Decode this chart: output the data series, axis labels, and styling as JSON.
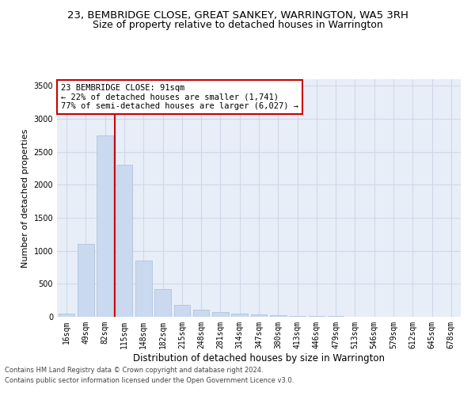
{
  "title": "23, BEMBRIDGE CLOSE, GREAT SANKEY, WARRINGTON, WA5 3RH",
  "subtitle": "Size of property relative to detached houses in Warrington",
  "xlabel": "Distribution of detached houses by size in Warrington",
  "ylabel": "Number of detached properties",
  "categories": [
    "16sqm",
    "49sqm",
    "82sqm",
    "115sqm",
    "148sqm",
    "182sqm",
    "215sqm",
    "248sqm",
    "281sqm",
    "314sqm",
    "347sqm",
    "380sqm",
    "413sqm",
    "446sqm",
    "479sqm",
    "513sqm",
    "546sqm",
    "579sqm",
    "612sqm",
    "645sqm",
    "678sqm"
  ],
  "values": [
    50,
    1100,
    2750,
    2300,
    850,
    420,
    180,
    110,
    75,
    50,
    35,
    20,
    15,
    10,
    7,
    5,
    4,
    3,
    2,
    2,
    1
  ],
  "bar_color": "#c9d9f0",
  "bar_edge_color": "#a8bdd8",
  "vline_x": 2.5,
  "vline_color": "#cc0000",
  "annotation_title": "23 BEMBRIDGE CLOSE: 91sqm",
  "annotation_line1": "← 22% of detached houses are smaller (1,741)",
  "annotation_line2": "77% of semi-detached houses are larger (6,027) →",
  "annotation_box_color": "#ffffff",
  "annotation_box_edge": "#cc0000",
  "ylim": [
    0,
    3600
  ],
  "yticks": [
    0,
    500,
    1000,
    1500,
    2000,
    2500,
    3000,
    3500
  ],
  "grid_color": "#d0d8e8",
  "bg_color": "#e8eef8",
  "footer1": "Contains HM Land Registry data © Crown copyright and database right 2024.",
  "footer2": "Contains public sector information licensed under the Open Government Licence v3.0.",
  "title_fontsize": 9.5,
  "subtitle_fontsize": 9,
  "xlabel_fontsize": 8.5,
  "ylabel_fontsize": 8,
  "tick_fontsize": 7,
  "ann_fontsize": 7.5,
  "footer_fontsize": 6
}
